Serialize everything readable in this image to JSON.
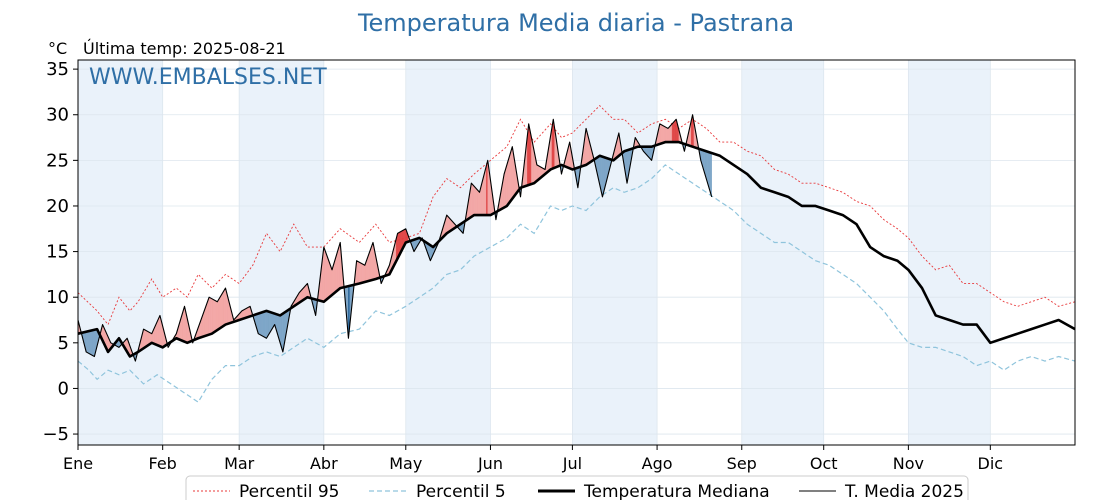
{
  "chart_data": {
    "type": "line",
    "title": "Temperatura Media diaria - Pastrana",
    "ylabel": "°C",
    "last_temp_label": "Última temp: 2025-08-21",
    "watermark": "WWW.EMBALSES.NET",
    "ylim": [
      -6.2,
      36
    ],
    "yticks": [
      -5,
      0,
      5,
      10,
      15,
      20,
      25,
      30,
      35
    ],
    "xlim": [
      1,
      366
    ],
    "months": [
      "Ene",
      "Feb",
      "Mar",
      "Abr",
      "May",
      "Jun",
      "Jul",
      "Ago",
      "Sep",
      "Oct",
      "Nov",
      "Dic"
    ],
    "month_starts": [
      1,
      32,
      60,
      91,
      121,
      152,
      182,
      213,
      244,
      274,
      305,
      335
    ],
    "grid": true,
    "legend_position": "bottom-center",
    "colors": {
      "p95": "#e8383a",
      "p5": "#8fc4dc",
      "median": "#000000",
      "y2025": "#000000",
      "above_fill": "#f3a7a6",
      "above_strong": "#e04848",
      "below_fill": "#7ea6c8",
      "below_strong": "#1f5d94",
      "band": "#eaf2fa"
    },
    "series": [
      {
        "name": "Percentil 95",
        "key": "p95",
        "style": "dashed-thin",
        "x": [
          1,
          8,
          12,
          16,
          20,
          23,
          28,
          32,
          37,
          41,
          45,
          50,
          55,
          60,
          65,
          70,
          75,
          80,
          85,
          91,
          97,
          104,
          110,
          115,
          121,
          126,
          131,
          136,
          141,
          146,
          152,
          158,
          163,
          168,
          174,
          178,
          182,
          187,
          192,
          197,
          201,
          206,
          211,
          216,
          221,
          226,
          231,
          236,
          241,
          246,
          251,
          256,
          261,
          266,
          271,
          276,
          281,
          286,
          291,
          296,
          301,
          305,
          310,
          315,
          320,
          325,
          330,
          335,
          340,
          345,
          350,
          355,
          360,
          366
        ],
        "values": [
          10.5,
          8.5,
          7.0,
          10.0,
          8.5,
          9.5,
          12.0,
          10.0,
          11.0,
          10.0,
          12.5,
          11.0,
          12.5,
          11.5,
          13.5,
          17.0,
          15.0,
          18.0,
          15.5,
          15.5,
          17.5,
          16.0,
          18.0,
          16.0,
          16.5,
          17.0,
          21.0,
          23.0,
          22.0,
          23.5,
          25.0,
          26.5,
          29.5,
          27.0,
          29.0,
          27.5,
          28.0,
          29.5,
          31.0,
          29.5,
          29.5,
          28.0,
          29.0,
          29.5,
          28.5,
          29.5,
          28.5,
          27.0,
          27.0,
          26.0,
          25.5,
          24.0,
          23.5,
          22.5,
          22.5,
          22.0,
          21.5,
          20.5,
          20.0,
          18.5,
          17.5,
          16.5,
          14.5,
          13.0,
          13.5,
          11.5,
          11.5,
          10.5,
          9.5,
          9.0,
          9.5,
          10.0,
          9.0,
          9.5
        ]
      },
      {
        "name": "Percentil 5",
        "key": "p5",
        "style": "dashed-thin",
        "x": [
          1,
          5,
          8,
          12,
          16,
          20,
          25,
          30,
          35,
          40,
          45,
          50,
          55,
          60,
          65,
          70,
          75,
          80,
          85,
          91,
          97,
          104,
          110,
          115,
          121,
          126,
          131,
          136,
          141,
          146,
          152,
          158,
          163,
          168,
          174,
          178,
          182,
          187,
          192,
          197,
          201,
          206,
          211,
          216,
          221,
          226,
          231,
          236,
          241,
          246,
          251,
          256,
          261,
          266,
          271,
          276,
          281,
          286,
          291,
          296,
          301,
          305,
          310,
          315,
          320,
          325,
          330,
          335,
          340,
          345,
          350,
          355,
          360,
          366
        ],
        "values": [
          3.0,
          2.0,
          1.0,
          2.0,
          1.5,
          2.0,
          0.5,
          1.5,
          0.5,
          -0.5,
          -1.5,
          1.0,
          2.5,
          2.5,
          3.5,
          4.0,
          3.5,
          4.5,
          5.5,
          4.5,
          6.0,
          6.5,
          8.5,
          8.0,
          9.0,
          10.0,
          11.0,
          12.5,
          13.0,
          14.5,
          15.5,
          16.5,
          18.0,
          17.0,
          20.0,
          19.5,
          20.0,
          19.5,
          21.0,
          22.0,
          21.5,
          22.0,
          23.0,
          24.5,
          23.5,
          22.5,
          21.5,
          20.5,
          19.5,
          18.0,
          17.0,
          16.0,
          16.0,
          15.0,
          14.0,
          13.5,
          12.5,
          11.5,
          10.0,
          8.5,
          6.5,
          5.0,
          4.5,
          4.5,
          4.0,
          3.5,
          2.5,
          3.0,
          2.0,
          3.0,
          3.5,
          3.0,
          3.5,
          3.0
        ]
      },
      {
        "name": "Temperatura Mediana",
        "key": "median",
        "style": "solid-thick",
        "x": [
          1,
          8,
          12,
          16,
          20,
          23,
          28,
          32,
          37,
          41,
          45,
          50,
          55,
          60,
          65,
          70,
          75,
          80,
          85,
          91,
          97,
          104,
          110,
          115,
          121,
          126,
          131,
          136,
          141,
          146,
          152,
          158,
          163,
          168,
          174,
          178,
          182,
          187,
          192,
          197,
          201,
          206,
          211,
          216,
          221,
          226,
          231,
          236,
          241,
          246,
          251,
          256,
          261,
          266,
          271,
          276,
          281,
          286,
          291,
          296,
          301,
          305,
          310,
          315,
          320,
          325,
          330,
          335,
          340,
          345,
          350,
          355,
          360,
          366
        ],
        "values": [
          6.0,
          6.5,
          4.0,
          5.5,
          3.5,
          4.0,
          5.0,
          4.5,
          5.5,
          5.0,
          5.5,
          6.0,
          7.0,
          7.5,
          8.0,
          8.5,
          8.0,
          9.0,
          10.0,
          9.5,
          11.0,
          11.5,
          12.0,
          12.5,
          16.0,
          16.5,
          15.5,
          17.0,
          18.0,
          19.0,
          19.0,
          20.0,
          22.0,
          22.5,
          24.0,
          24.5,
          24.0,
          24.5,
          25.5,
          25.0,
          26.0,
          26.5,
          26.5,
          27.0,
          27.0,
          26.5,
          26.0,
          25.5,
          24.5,
          23.5,
          22.0,
          21.5,
          21.0,
          20.0,
          20.0,
          19.5,
          19.0,
          18.0,
          15.5,
          14.5,
          14.0,
          13.0,
          11.0,
          8.0,
          7.5,
          7.0,
          7.0,
          5.0,
          5.5,
          6.0,
          6.5,
          7.0,
          7.5,
          6.5
        ]
      },
      {
        "name": "T. Media 2025",
        "key": "y2025",
        "style": "solid-thin",
        "x": [
          1,
          4,
          7,
          10,
          13,
          16,
          19,
          22,
          25,
          28,
          31,
          34,
          37,
          40,
          43,
          46,
          49,
          52,
          55,
          58,
          61,
          64,
          67,
          70,
          73,
          76,
          79,
          82,
          85,
          88,
          91,
          94,
          97,
          100,
          103,
          106,
          109,
          112,
          115,
          118,
          121,
          124,
          127,
          130,
          133,
          136,
          139,
          142,
          145,
          148,
          151,
          154,
          157,
          160,
          163,
          166,
          169,
          172,
          175,
          178,
          181,
          184,
          187,
          190,
          193,
          196,
          199,
          202,
          205,
          208,
          211,
          214,
          217,
          220,
          223,
          226,
          229,
          232,
          233
        ],
        "values": [
          7.5,
          4.0,
          3.5,
          7.0,
          5.0,
          4.5,
          5.5,
          3.0,
          6.5,
          6.0,
          8.0,
          4.5,
          6.0,
          9.0,
          5.0,
          7.5,
          10.0,
          9.5,
          11.0,
          7.5,
          8.5,
          9.0,
          6.0,
          5.5,
          7.0,
          4.0,
          9.0,
          10.5,
          11.5,
          8.0,
          15.5,
          13.0,
          16.0,
          5.5,
          14.0,
          13.5,
          16.0,
          11.5,
          13.5,
          17.0,
          17.5,
          15.0,
          16.5,
          14.0,
          16.0,
          19.0,
          18.0,
          17.0,
          22.5,
          21.5,
          25.0,
          18.5,
          23.5,
          26.5,
          21.0,
          29.0,
          24.5,
          24.0,
          29.5,
          23.5,
          27.0,
          22.0,
          28.5,
          25.0,
          21.0,
          24.5,
          28.0,
          22.5,
          27.5,
          26.0,
          25.0,
          29.0,
          28.5,
          29.5,
          26.0,
          30.0,
          25.0,
          22.0,
          21.0
        ]
      }
    ]
  }
}
